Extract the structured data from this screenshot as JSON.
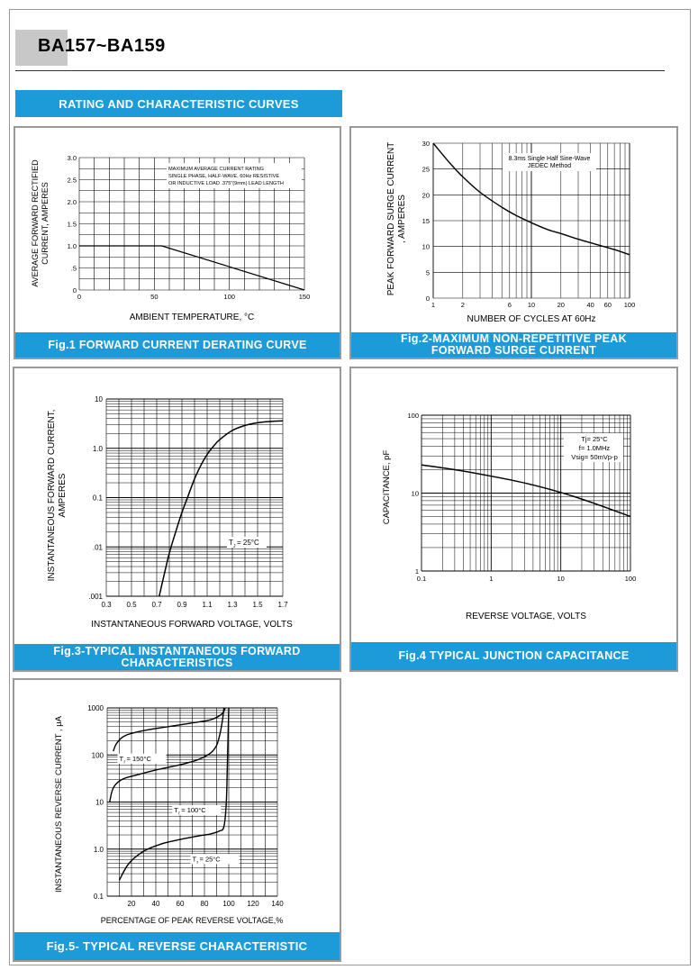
{
  "header": {
    "title": "BA157~BA159"
  },
  "section_banner": "RATING AND CHARACTERISTIC CURVES",
  "colors": {
    "accent": "#1d9ad8",
    "grid": "#000000",
    "curve": "#000000"
  },
  "chart_data": [
    {
      "id": "fig1",
      "type": "line",
      "caption": [
        "Fig.1 FORWARD CURRENT DERATING CURVE"
      ],
      "xlabel": "AMBIENT TEMPERATURE, °C",
      "ylabel": [
        "AVERAGE FORWARD RECTIFIED",
        "CURRENT, AMPERES"
      ],
      "xlim": [
        0,
        150
      ],
      "ylim": [
        0,
        3.0
      ],
      "x_ticks": [
        "0",
        "50",
        "100",
        "150"
      ],
      "y_ticks": [
        "0",
        ".5",
        "1.0",
        "1.5",
        "2.0",
        "2.5",
        "3.0"
      ],
      "annotation": [
        "MAXIMUM AVERAGE CURRENT RATING",
        "SINGLE PHASE, HALF-WAVE, 60Hz RESISTIVE",
        "OR INDUCTIVE LOAD .375\"(9mm) LEAD LENGTH"
      ],
      "series": [
        {
          "x": [
            0,
            55,
            150
          ],
          "y": [
            1.0,
            1.0,
            0
          ]
        }
      ],
      "grid": true
    },
    {
      "id": "fig2",
      "type": "line",
      "caption": [
        "Fig.2-MAXIMUM NON-REPETITIVE PEAK",
        "FORWARD SURGE CURRENT"
      ],
      "xlabel": "NUMBER OF CYCLES AT 60Hz",
      "ylabel": [
        "PEAK FORWARD SURGE CURRENT",
        ", AMPERES"
      ],
      "xscale": "log",
      "xlim": [
        1,
        100
      ],
      "ylim": [
        0,
        30
      ],
      "x_ticks": [
        "1",
        "2",
        "6",
        "10",
        "20",
        "40",
        "60",
        "100"
      ],
      "y_ticks": [
        "0",
        "5",
        "10",
        "15",
        "20",
        "25",
        "30"
      ],
      "annotation": [
        "8.3ms Single Half Sine-Wave",
        "JEDEC Method"
      ],
      "series": [
        {
          "x": [
            1,
            1.5,
            2,
            3,
            5,
            7,
            10,
            15,
            20,
            30,
            50,
            70,
            100
          ],
          "y": [
            30,
            26,
            23.5,
            20.5,
            17.6,
            16,
            14.6,
            13.2,
            12.5,
            11.4,
            10.2,
            9.4,
            8.4
          ]
        }
      ],
      "grid": true
    },
    {
      "id": "fig3",
      "type": "line",
      "caption": [
        "Fig.3-TYPICAL INSTANTANEOUS FORWARD",
        "CHARACTERISTICS"
      ],
      "xlabel": "INSTANTANEOUS FORWARD VOLTAGE, VOLTS",
      "ylabel": [
        "INSTANTANEOUS FORWARD CURRENT,",
        "AMPERES"
      ],
      "yscale": "log",
      "xlim": [
        0.3,
        1.7
      ],
      "ylim": [
        0.001,
        10
      ],
      "x_ticks": [
        "0.3",
        "0.5",
        "0.7",
        "0.9",
        "1.1",
        "1.3",
        "1.5",
        "1.7"
      ],
      "y_ticks": [
        ".001",
        ".01",
        "0.1",
        "1.0",
        "10"
      ],
      "annotation": [
        "T",
        "J",
        "= 25°C"
      ],
      "series": [
        {
          "x": [
            0.72,
            0.76,
            0.8,
            0.85,
            0.9,
            0.95,
            1.0,
            1.05,
            1.1,
            1.15,
            1.2,
            1.3,
            1.4,
            1.5,
            1.6,
            1.7
          ],
          "y": [
            0.001,
            0.0028,
            0.0075,
            0.02,
            0.05,
            0.11,
            0.24,
            0.45,
            0.75,
            1.1,
            1.5,
            2.3,
            2.9,
            3.3,
            3.5,
            3.6
          ]
        }
      ],
      "grid": true
    },
    {
      "id": "fig4",
      "type": "line",
      "caption": [
        "Fig.4 TYPICAL JUNCTION CAPACITANCE"
      ],
      "xlabel": "REVERSE VOLTAGE, VOLTS",
      "ylabel": [
        "CAPACITANCE, pF"
      ],
      "xscale": "log",
      "yscale": "log",
      "xlim": [
        0.1,
        100
      ],
      "ylim": [
        1,
        100
      ],
      "x_ticks": [
        "0.1",
        "1",
        "10",
        "100"
      ],
      "y_ticks": [
        "1",
        "10",
        "100"
      ],
      "annotation": [
        "Tj= 25°C",
        "f= 1.0MHz",
        "Vsig= 50mVp-p"
      ],
      "series": [
        {
          "x": [
            0.1,
            0.3,
            1,
            3,
            10,
            30,
            100
          ],
          "y": [
            23,
            20,
            16.5,
            13.5,
            10.2,
            7.4,
            5.0
          ]
        }
      ],
      "grid": true
    },
    {
      "id": "fig5",
      "type": "line",
      "caption": [
        "Fig.5- TYPICAL REVERSE CHARACTERISTIC"
      ],
      "xlabel": "PERCENTAGE OF PEAK REVERSE VOLTAGE,%",
      "ylabel": [
        "INSTANTANEOUS REVERSE CURRENT , μA"
      ],
      "yscale": "log",
      "xlim": [
        0,
        140
      ],
      "ylim": [
        0.1,
        1000
      ],
      "x_ticks": [
        "20",
        "40",
        "60",
        "80",
        "100",
        "120",
        "140"
      ],
      "y_ticks": [
        "0.1",
        "1.0",
        "10",
        "100",
        "1000"
      ],
      "series": [
        {
          "name": "T = 150°C",
          "label": [
            "T",
            "r",
            " = 150°C"
          ],
          "x": [
            5,
            8,
            15,
            30,
            50,
            70,
            85,
            93,
            96,
            97
          ],
          "y": [
            120,
            180,
            260,
            330,
            400,
            480,
            560,
            700,
            850,
            1000
          ]
        },
        {
          "name": "T = 100°C",
          "label": [
            "T",
            "r",
            " = 100°C"
          ],
          "x": [
            2,
            5,
            12,
            25,
            40,
            60,
            75,
            85,
            90,
            93,
            95,
            96
          ],
          "y": [
            10,
            20,
            30,
            38,
            48,
            62,
            80,
            110,
            160,
            300,
            600,
            1000
          ]
        },
        {
          "name": "T = 25°C",
          "label": [
            "T",
            "r",
            " = 25°C"
          ],
          "x": [
            10,
            18,
            30,
            45,
            60,
            75,
            85,
            92,
            96,
            98,
            99,
            100
          ],
          "y": [
            0.22,
            0.5,
            0.9,
            1.3,
            1.6,
            1.9,
            2.1,
            2.4,
            3,
            10,
            100,
            1000
          ]
        }
      ],
      "grid": true
    }
  ]
}
